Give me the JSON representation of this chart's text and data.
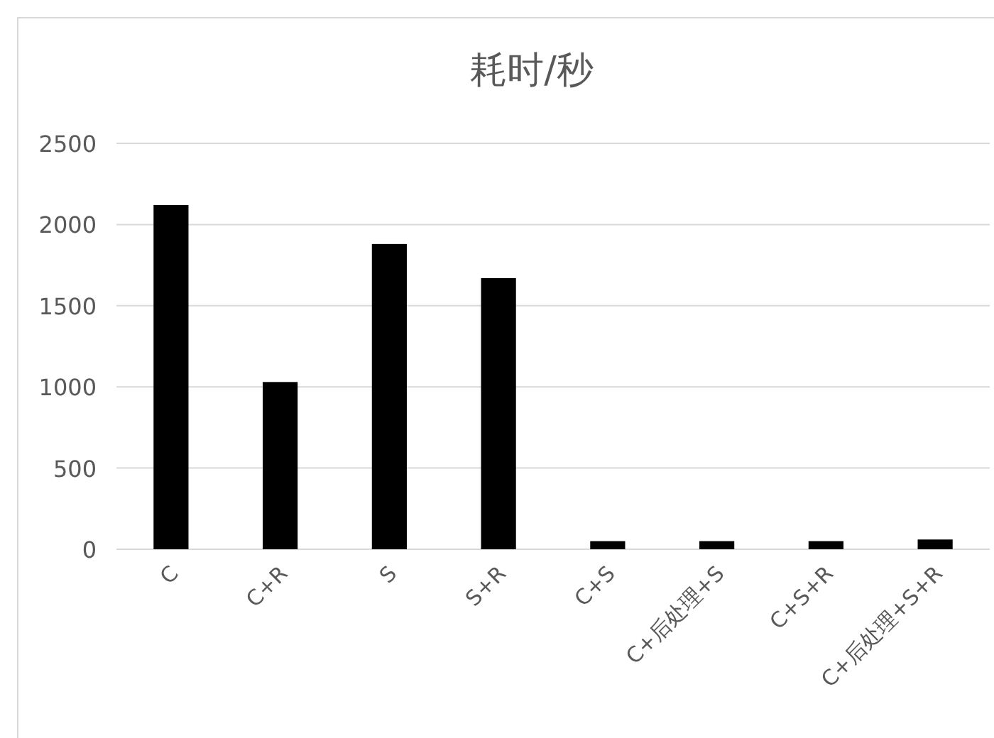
{
  "chart_data": {
    "type": "bar",
    "title": "耗时/秒",
    "categories": [
      "C",
      "C+R",
      "S",
      "S+R",
      "C+S",
      "C+后处理+S",
      "C+S+R",
      "C+后处理+S+R"
    ],
    "values": [
      2120,
      1030,
      1880,
      1670,
      50,
      50,
      50,
      60
    ],
    "color": "#000000",
    "ylim": [
      0,
      2500
    ],
    "yticks": [
      0,
      500,
      1000,
      1500,
      2000,
      2500
    ],
    "grid": "y"
  }
}
